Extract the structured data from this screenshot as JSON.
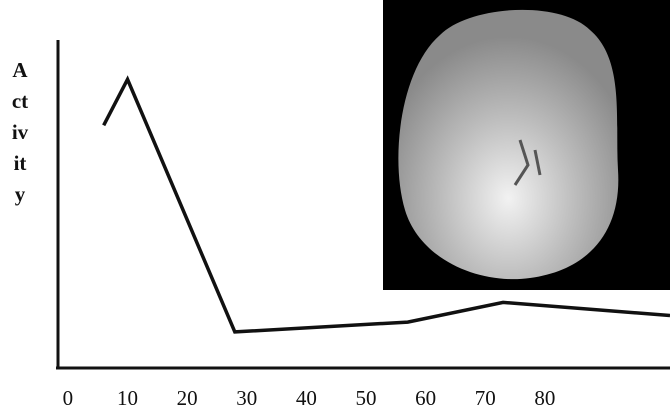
{
  "chart_data": {
    "type": "line",
    "ylabel": "Activity",
    "x": [
      6,
      10,
      28,
      57,
      73,
      101
    ],
    "series": [
      {
        "color": "#111111",
        "values": [
          7.4,
          8.8,
          1.1,
          1.4,
          2.0,
          1.6
        ]
      }
    ],
    "xlim": [
      -2,
      101
    ],
    "xticks": [
      0,
      10,
      20,
      30,
      40,
      50,
      60,
      70,
      80
    ],
    "ylim": [
      0,
      10
    ]
  }
}
